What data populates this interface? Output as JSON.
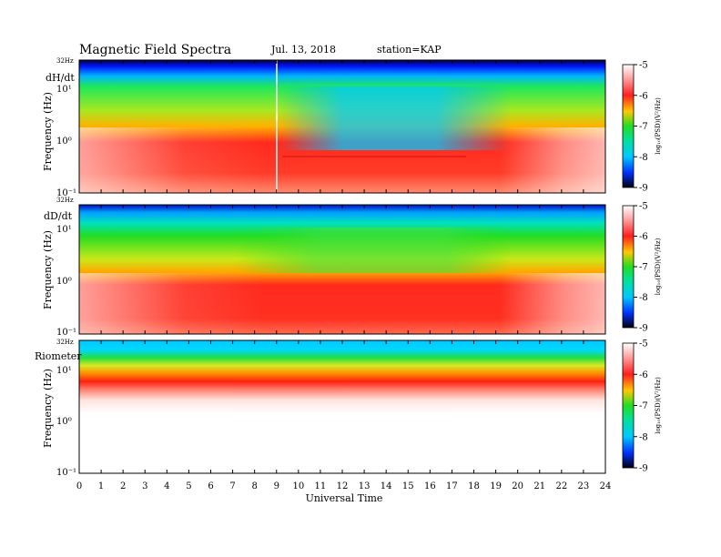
{
  "header": {
    "title": "Magnetic Field Spectra",
    "date": "Jul. 13, 2018",
    "station": "station=KAP"
  },
  "chart_data": [
    {
      "type": "heatmap",
      "panel_label": "dH/dt",
      "ylabel": "Frequency (Hz)",
      "xlabel": "",
      "top_label": "32Hz",
      "y_ticks": [
        "10¹",
        "10⁰",
        "10⁻¹"
      ],
      "xlim": [
        0,
        24
      ],
      "colorbar": {
        "label": "log₁₀(PSD)(V²/Hz)",
        "ticks": [
          "-5",
          "-6",
          "-7",
          "-8",
          "-9"
        ],
        "range": [
          -9,
          -5
        ]
      }
    },
    {
      "type": "heatmap",
      "panel_label": "dD/dt",
      "ylabel": "Frequency (Hz)",
      "xlabel": "",
      "top_label": "32Hz",
      "y_ticks": [
        "10¹",
        "10⁰",
        "10⁻¹"
      ],
      "xlim": [
        0,
        24
      ],
      "colorbar": {
        "label": "log₁₀(PSD)(V²/Hz)",
        "ticks": [
          "-5",
          "-6",
          "-7",
          "-8",
          "-9"
        ],
        "range": [
          -9,
          -5
        ]
      }
    },
    {
      "type": "heatmap",
      "panel_label": "Riometer",
      "ylabel": "Frequency (Hz)",
      "xlabel": "Universal Time",
      "top_label": "32Hz",
      "y_ticks": [
        "10¹",
        "10⁰",
        "10⁻¹"
      ],
      "xlim": [
        0,
        24
      ],
      "x_ticks": [
        "0",
        "1",
        "2",
        "3",
        "4",
        "5",
        "6",
        "7",
        "8",
        "9",
        "10",
        "11",
        "12",
        "13",
        "14",
        "15",
        "16",
        "17",
        "18",
        "19",
        "20",
        "21",
        "22",
        "23",
        "24"
      ],
      "colorbar": {
        "label": "log₁₀(PSD)(V²/Hz)",
        "ticks": [
          "-5",
          "-6",
          "-7",
          "-8",
          "-9"
        ],
        "range": [
          -9,
          -5
        ]
      }
    }
  ]
}
